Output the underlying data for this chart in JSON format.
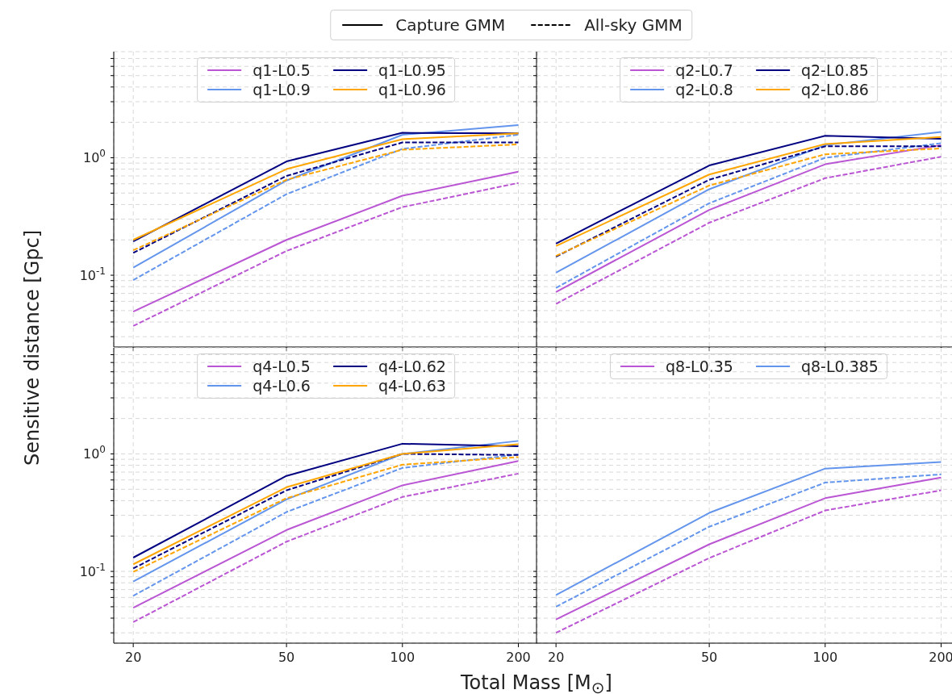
{
  "chart_data": [
    {
      "type": "line",
      "ylabel": "Sensitive distance [Gpc]",
      "x": [
        20,
        50,
        100,
        200
      ],
      "xlim": [
        17.8,
        224
      ],
      "xticks": [
        20,
        50,
        100,
        200
      ],
      "ylim": [
        0.0245,
        8
      ],
      "yticks": [
        {
          "value": 0.03,
          "label": null
        },
        {
          "value": 0.04,
          "label": null
        },
        {
          "value": 0.05,
          "label": null
        },
        {
          "value": 0.06,
          "label": null
        },
        {
          "value": 0.07,
          "label": null
        },
        {
          "value": 0.08,
          "label": null
        },
        {
          "value": 0.09,
          "label": null
        },
        {
          "value": 0.1,
          "label": "10$^{-1}$"
        },
        {
          "value": 0.2,
          "label": null
        },
        {
          "value": 0.3,
          "label": null
        },
        {
          "value": 0.4,
          "label": null
        },
        {
          "value": 0.5,
          "label": null
        },
        {
          "value": 0.6,
          "label": null
        },
        {
          "value": 0.7,
          "label": null
        },
        {
          "value": 0.8,
          "label": null
        },
        {
          "value": 0.9,
          "label": null
        },
        {
          "value": 1,
          "label": "10$^{0}$"
        },
        {
          "value": 2,
          "label": null
        },
        {
          "value": 3,
          "label": null
        },
        {
          "value": 4,
          "label": null
        },
        {
          "value": 5,
          "label": null
        },
        {
          "value": 6,
          "label": null
        },
        {
          "value": 7,
          "label": null
        }
      ],
      "log": "xy",
      "grid": true,
      "legend": "top",
      "marker": "none",
      "tick_labels": "y",
      "series": [
        {
          "name": "q1-L0.5",
          "color": "#ba55d3",
          "line_style": "solid",
          "values": [
            0.049,
            0.2,
            0.475,
            0.76
          ]
        },
        {
          "color": "#ba55d3",
          "line_style": "dashed",
          "values": [
            0.037,
            0.161,
            0.38,
            0.61
          ]
        },
        {
          "name": "q1-L0.9",
          "color": "#6495ed",
          "line_style": "solid",
          "values": [
            0.116,
            0.64,
            1.57,
            1.9
          ]
        },
        {
          "color": "#6495ed",
          "line_style": "dashed",
          "values": [
            0.091,
            0.49,
            1.19,
            1.57
          ]
        },
        {
          "name": "q1-L0.95",
          "color": "#000080",
          "line_style": "solid",
          "values": [
            0.194,
            0.93,
            1.63,
            1.61
          ]
        },
        {
          "color": "#000080",
          "line_style": "dashed",
          "values": [
            0.155,
            0.7,
            1.35,
            1.35
          ]
        },
        {
          "name": "q1-L0.96",
          "color": "#ffa500",
          "line_style": "solid",
          "values": [
            0.2,
            0.8,
            1.44,
            1.61
          ]
        },
        {
          "color": "#ffa500",
          "line_style": "dashed",
          "values": [
            0.163,
            0.65,
            1.17,
            1.3
          ]
        },
        {
          "name": "Capture GMM",
          "color": "#000000",
          "line_style": "solid",
          "values": [
            null,
            null,
            null,
            null
          ]
        },
        {
          "name": "All-sky GMM",
          "color": "#000000",
          "line_style": "dashed",
          "values": [
            null,
            null,
            null,
            null
          ]
        }
      ]
    },
    {
      "type": "line",
      "x": [
        20,
        50,
        100,
        200
      ],
      "xlim": [
        17.8,
        224
      ],
      "xticks": [
        20,
        50,
        100,
        200
      ],
      "ylim": [
        0.0245,
        8
      ],
      "yticks": [
        {
          "value": 0.03,
          "label": null
        },
        {
          "value": 0.04,
          "label": null
        },
        {
          "value": 0.05,
          "label": null
        },
        {
          "value": 0.06,
          "label": null
        },
        {
          "value": 0.07,
          "label": null
        },
        {
          "value": 0.08,
          "label": null
        },
        {
          "value": 0.09,
          "label": null
        },
        {
          "value": 0.1,
          "label": null
        },
        {
          "value": 0.2,
          "label": null
        },
        {
          "value": 0.3,
          "label": null
        },
        {
          "value": 0.4,
          "label": null
        },
        {
          "value": 0.5,
          "label": null
        },
        {
          "value": 0.6,
          "label": null
        },
        {
          "value": 0.7,
          "label": null
        },
        {
          "value": 0.8,
          "label": null
        },
        {
          "value": 0.9,
          "label": null
        },
        {
          "value": 1,
          "label": null
        },
        {
          "value": 2,
          "label": null
        },
        {
          "value": 3,
          "label": null
        },
        {
          "value": 4,
          "label": null
        },
        {
          "value": 5,
          "label": null
        },
        {
          "value": 6,
          "label": null
        },
        {
          "value": 7,
          "label": null
        }
      ],
      "log": "xy",
      "grid": true,
      "legend": "top",
      "marker": "none",
      "tick_labels": false,
      "series": [
        {
          "name": "q2-L0.7",
          "color": "#ba55d3",
          "line_style": "solid",
          "values": [
            0.072,
            0.36,
            0.88,
            1.28
          ]
        },
        {
          "color": "#ba55d3",
          "line_style": "dashed",
          "values": [
            0.057,
            0.28,
            0.67,
            1.02
          ]
        },
        {
          "name": "q2-L0.8",
          "color": "#6495ed",
          "line_style": "solid",
          "values": [
            0.105,
            0.54,
            1.28,
            1.66
          ]
        },
        {
          "color": "#6495ed",
          "line_style": "dashed",
          "values": [
            0.078,
            0.41,
            1.0,
            1.33
          ]
        },
        {
          "name": "q2-L0.85",
          "color": "#000080",
          "line_style": "solid",
          "values": [
            0.186,
            0.86,
            1.54,
            1.45
          ]
        },
        {
          "color": "#000080",
          "line_style": "dashed",
          "values": [
            0.144,
            0.65,
            1.25,
            1.25
          ]
        },
        {
          "name": "q2-L0.86",
          "color": "#ffa500",
          "line_style": "solid",
          "values": [
            0.177,
            0.72,
            1.31,
            1.5
          ]
        },
        {
          "color": "#ffa500",
          "line_style": "dashed",
          "values": [
            0.146,
            0.58,
            1.07,
            1.2
          ]
        }
      ]
    },
    {
      "type": "line",
      "xlabel": "Total Mass [M$_{⊙}$]",
      "x": [
        20,
        50,
        100,
        200
      ],
      "xlim": [
        17.8,
        224
      ],
      "xticks": [
        20,
        50,
        100,
        200
      ],
      "ylim": [
        0.0245,
        8
      ],
      "yticks": [
        {
          "value": 0.03,
          "label": null
        },
        {
          "value": 0.04,
          "label": null
        },
        {
          "value": 0.05,
          "label": null
        },
        {
          "value": 0.06,
          "label": null
        },
        {
          "value": 0.07,
          "label": null
        },
        {
          "value": 0.08,
          "label": null
        },
        {
          "value": 0.09,
          "label": null
        },
        {
          "value": 0.1,
          "label": "10$^{-1}$"
        },
        {
          "value": 0.2,
          "label": null
        },
        {
          "value": 0.3,
          "label": null
        },
        {
          "value": 0.4,
          "label": null
        },
        {
          "value": 0.5,
          "label": null
        },
        {
          "value": 0.6,
          "label": null
        },
        {
          "value": 0.7,
          "label": null
        },
        {
          "value": 0.8,
          "label": null
        },
        {
          "value": 0.9,
          "label": null
        },
        {
          "value": 1,
          "label": "10$^{0}$"
        },
        {
          "value": 2,
          "label": null
        },
        {
          "value": 3,
          "label": null
        },
        {
          "value": 4,
          "label": null
        },
        {
          "value": 5,
          "label": null
        },
        {
          "value": 6,
          "label": null
        },
        {
          "value": 7,
          "label": null
        }
      ],
      "log": "xy",
      "grid": true,
      "legend": "top",
      "marker": "none",
      "series": [
        {
          "name": "q4-L0.5",
          "color": "#ba55d3",
          "line_style": "solid",
          "values": [
            0.049,
            0.225,
            0.54,
            0.87
          ]
        },
        {
          "color": "#ba55d3",
          "line_style": "dashed",
          "values": [
            0.037,
            0.179,
            0.43,
            0.68
          ]
        },
        {
          "name": "q4-L0.6",
          "color": "#6495ed",
          "line_style": "solid",
          "values": [
            0.082,
            0.41,
            1.0,
            1.29
          ]
        },
        {
          "color": "#6495ed",
          "line_style": "dashed",
          "values": [
            0.062,
            0.32,
            0.76,
            0.99
          ]
        },
        {
          "name": "q4-L0.62",
          "color": "#000080",
          "line_style": "solid",
          "values": [
            0.131,
            0.65,
            1.22,
            1.16
          ]
        },
        {
          "color": "#000080",
          "line_style": "dashed",
          "values": [
            0.106,
            0.49,
            1.0,
            0.98
          ]
        },
        {
          "name": "q4-L0.63",
          "color": "#ffa500",
          "line_style": "solid",
          "values": [
            0.115,
            0.52,
            1.0,
            1.21
          ]
        },
        {
          "color": "#ffa500",
          "line_style": "dashed",
          "values": [
            0.099,
            0.42,
            0.81,
            0.94
          ]
        }
      ]
    },
    {
      "type": "line",
      "x": [
        20,
        50,
        100,
        200
      ],
      "xlim": [
        17.8,
        224
      ],
      "xticks": [
        20,
        50,
        100,
        200
      ],
      "ylim": [
        0.0245,
        8
      ],
      "yticks": [
        {
          "value": 0.03,
          "label": null
        },
        {
          "value": 0.04,
          "label": null
        },
        {
          "value": 0.05,
          "label": null
        },
        {
          "value": 0.06,
          "label": null
        },
        {
          "value": 0.07,
          "label": null
        },
        {
          "value": 0.08,
          "label": null
        },
        {
          "value": 0.09,
          "label": null
        },
        {
          "value": 0.1,
          "label": null
        },
        {
          "value": 0.2,
          "label": null
        },
        {
          "value": 0.3,
          "label": null
        },
        {
          "value": 0.4,
          "label": null
        },
        {
          "value": 0.5,
          "label": null
        },
        {
          "value": 0.6,
          "label": null
        },
        {
          "value": 0.7,
          "label": null
        },
        {
          "value": 0.8,
          "label": null
        },
        {
          "value": 0.9,
          "label": null
        },
        {
          "value": 1,
          "label": null
        },
        {
          "value": 2,
          "label": null
        },
        {
          "value": 3,
          "label": null
        },
        {
          "value": 4,
          "label": null
        },
        {
          "value": 5,
          "label": null
        },
        {
          "value": 6,
          "label": null
        },
        {
          "value": 7,
          "label": null
        }
      ],
      "log": "xy",
      "grid": true,
      "legend": "top",
      "marker": "none",
      "tick_labels": "x",
      "series": [
        {
          "name": "q8-L0.35",
          "color": "#ba55d3",
          "line_style": "solid",
          "values": [
            0.039,
            0.17,
            0.42,
            0.63
          ]
        },
        {
          "color": "#ba55d3",
          "line_style": "dashed",
          "values": [
            0.03,
            0.13,
            0.33,
            0.49
          ]
        },
        {
          "name": "q8-L0.385",
          "color": "#6495ed",
          "line_style": "solid",
          "values": [
            0.063,
            0.315,
            0.75,
            0.855
          ]
        },
        {
          "color": "#6495ed",
          "line_style": "dashed",
          "values": [
            0.05,
            0.24,
            0.57,
            0.67
          ]
        }
      ]
    }
  ]
}
